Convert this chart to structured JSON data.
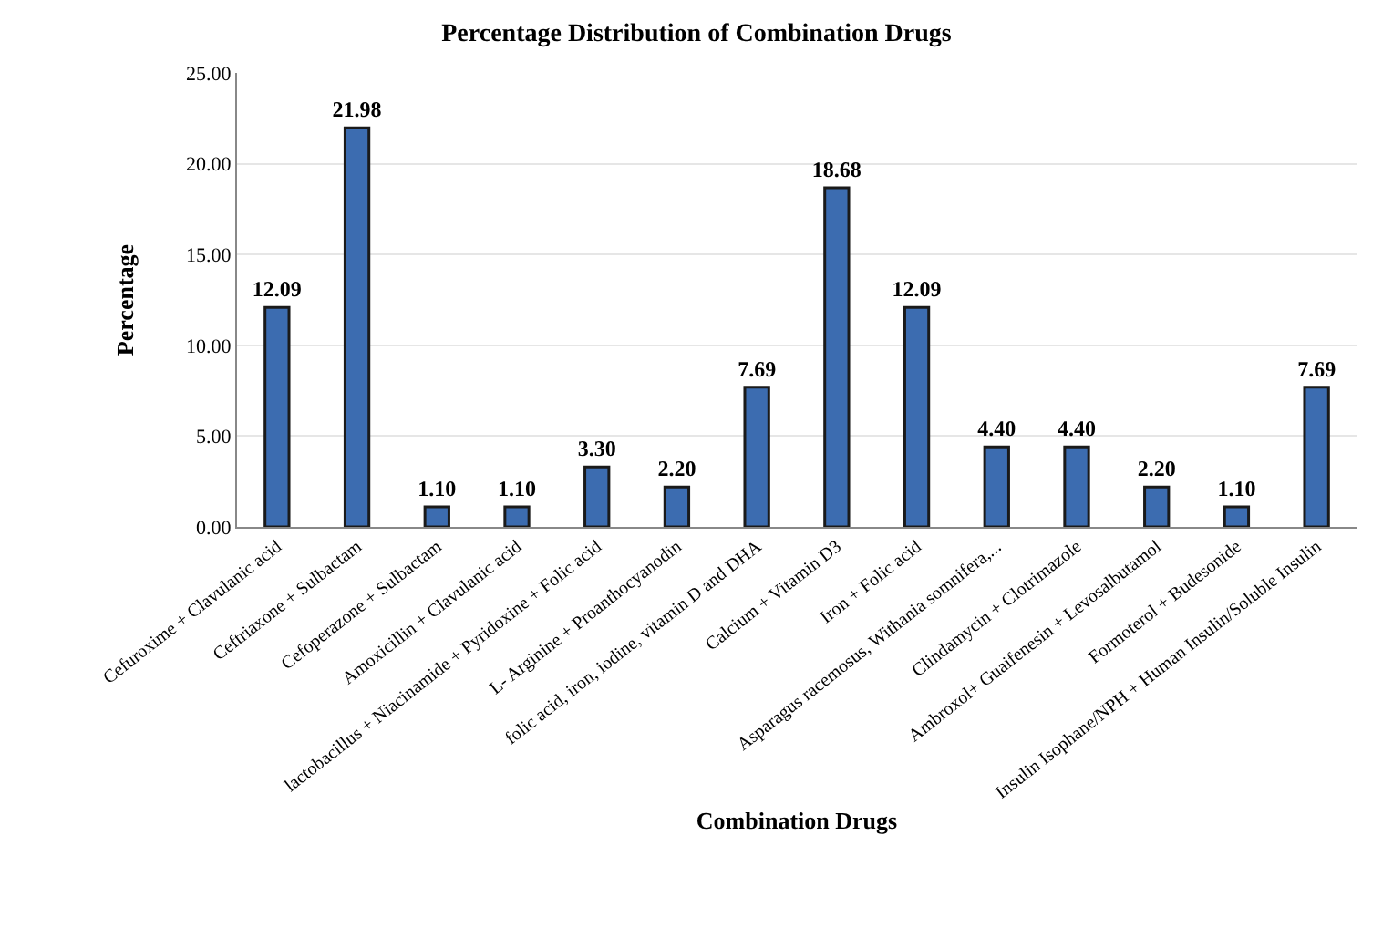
{
  "chart_data": {
    "type": "bar",
    "title": "Percentage Distribution of Combination Drugs",
    "xlabel": "Combination Drugs",
    "ylabel": "Percentage",
    "categories": [
      "Cefuroxime + Clavulanic acid",
      "Ceftriaxone + Sulbactam",
      "Cefoperazone + Sulbactam",
      "Amoxicillin + Clavulanic acid",
      "lactobacillus + Niacinamide + Pyridoxine + Folic acid",
      "L- Arginine + Proanthocyanodin",
      "folic acid, iron, iodine, vitamin D and DHA",
      "Calcium + Vitamin D3",
      "Iron + Folic acid",
      "Asparagus racemosus, Withania somnifera,...",
      "Clindamycin + Clotrimazole",
      "Ambroxol+ Guaifenesin + Levosalbutamol",
      "Formoterol + Budesonide",
      "Insulin Isophane/NPH + Human Insulin/Soluble Insulin"
    ],
    "values": [
      12.09,
      21.98,
      1.1,
      1.1,
      3.3,
      2.2,
      7.69,
      18.68,
      12.09,
      4.4,
      4.4,
      2.2,
      1.1,
      7.69
    ],
    "value_labels": [
      "12.09",
      "21.98",
      "1.10",
      "1.10",
      "3.30",
      "2.20",
      "7.69",
      "18.68",
      "12.09",
      "4.40",
      "4.40",
      "2.20",
      "1.10",
      "7.69"
    ],
    "color": "#3c6cb0",
    "ylim": [
      0,
      25
    ],
    "yticks": [
      {
        "value": 0,
        "label": "0.00"
      },
      {
        "value": 5,
        "label": "5.00"
      },
      {
        "value": 10,
        "label": "10.00"
      },
      {
        "value": 15,
        "label": "15.00"
      },
      {
        "value": 20,
        "label": "20.00"
      },
      {
        "value": 25,
        "label": "25.00"
      }
    ],
    "grid": "y"
  }
}
